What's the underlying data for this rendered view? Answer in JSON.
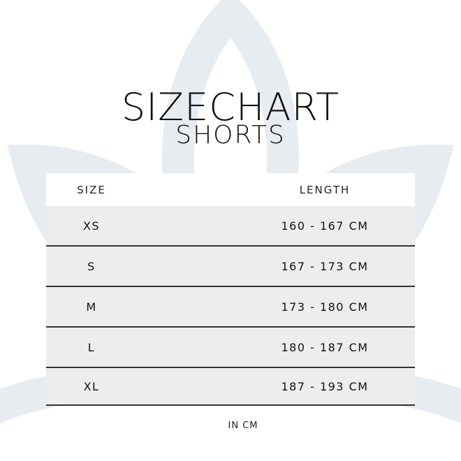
{
  "title": "SIZECHART",
  "subtitle": "SHORTS",
  "table": {
    "headers": [
      "SIZE",
      "LENGTH"
    ],
    "rows": [
      [
        "XS",
        "160 - 167 CM"
      ],
      [
        "S",
        "167 - 173 CM"
      ],
      [
        "M",
        "173 - 180 CM"
      ],
      [
        "L",
        "180 - 187 CM"
      ],
      [
        "XL",
        "187 - 193 CM"
      ]
    ]
  },
  "note": "IN CM",
  "colors": {
    "row_bg": "#ededed",
    "divider": "#333333",
    "watermark": "#e7ecf1"
  }
}
